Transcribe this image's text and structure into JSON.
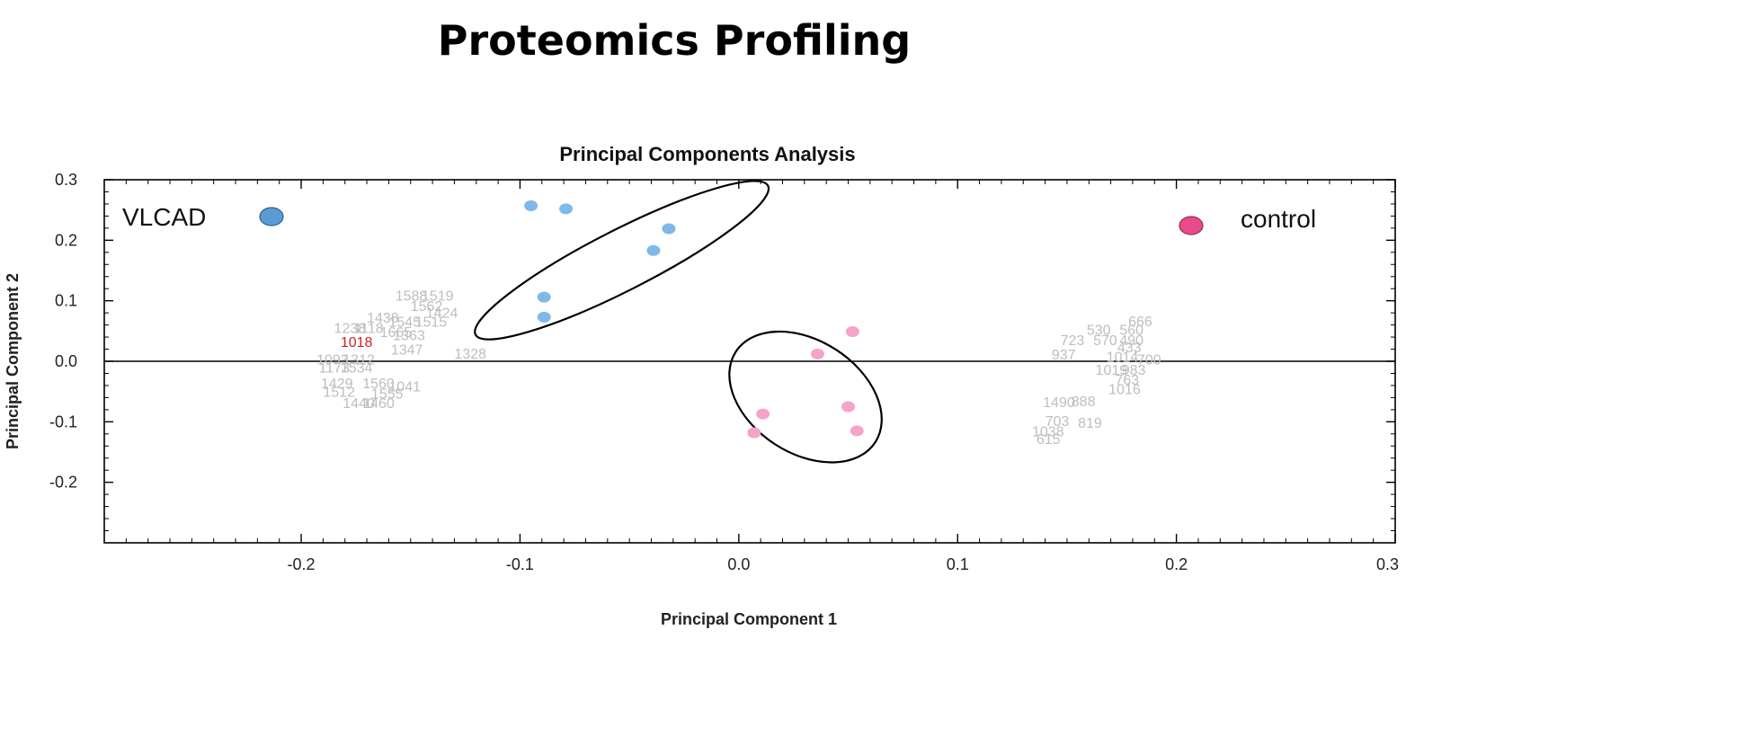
{
  "header": {
    "title": "Proteomics Profiling"
  },
  "chart_data": {
    "type": "scatter",
    "title": "Principal Components Analysis",
    "xlabel": "Principal Component 1",
    "ylabel": "Principal Component 2",
    "xlim": [
      -0.29,
      0.3
    ],
    "ylim": [
      -0.3,
      0.3
    ],
    "x_ticks": [
      -0.2,
      -0.1,
      0.0,
      0.1,
      0.2,
      0.3
    ],
    "y_ticks": [
      -0.2,
      -0.1,
      0.0,
      0.1,
      0.2,
      0.3
    ],
    "x_tick_labels": [
      "-0.2",
      "-0.1",
      "0.0",
      "0.1",
      "0.2",
      "0.3"
    ],
    "y_tick_labels": [
      "-0.2",
      "-0.1",
      "0.0",
      "0.1",
      "0.2",
      "0.3"
    ],
    "zero_line": true,
    "grid": false,
    "series": [
      {
        "name": "VLCAD",
        "color": "#7fb8ea",
        "legend_color": "#5b9bd5",
        "points": [
          {
            "x": -0.095,
            "y": 0.257
          },
          {
            "x": -0.079,
            "y": 0.252
          },
          {
            "x": -0.032,
            "y": 0.219
          },
          {
            "x": -0.039,
            "y": 0.183
          },
          {
            "x": -0.089,
            "y": 0.106
          },
          {
            "x": -0.089,
            "y": 0.073
          }
        ],
        "ellipse": {
          "cx": -0.0535,
          "cy": 0.167,
          "rx": 0.075,
          "ry": 0.05,
          "rotation_deg": -27
        }
      },
      {
        "name": "control",
        "color": "#f5a3c8",
        "legend_color": "#e84a8a",
        "points": [
          {
            "x": 0.052,
            "y": 0.049
          },
          {
            "x": 0.036,
            "y": 0.012
          },
          {
            "x": 0.05,
            "y": -0.075
          },
          {
            "x": 0.054,
            "y": -0.115
          },
          {
            "x": 0.011,
            "y": -0.087
          },
          {
            "x": 0.007,
            "y": -0.118
          }
        ],
        "ellipse": {
          "cx": 0.0305,
          "cy": -0.059,
          "rx": 0.038,
          "ry": 0.093,
          "rotation_deg": 33
        }
      }
    ],
    "legend": [
      {
        "label": "VLCAD",
        "color": "#5b9bd5",
        "placement": "top-left"
      },
      {
        "label": "control",
        "color": "#e84a8a",
        "placement": "top-right"
      }
    ],
    "loadings": [
      {
        "label": "1018",
        "x": -0.182,
        "y": 0.033,
        "highlight": true
      },
      {
        "label": "1588",
        "x": -0.157,
        "y": 0.109
      },
      {
        "label": "1519",
        "x": -0.145,
        "y": 0.109
      },
      {
        "label": "1562",
        "x": -0.15,
        "y": 0.092
      },
      {
        "label": "1424",
        "x": -0.143,
        "y": 0.081
      },
      {
        "label": "1438",
        "x": -0.17,
        "y": 0.073
      },
      {
        "label": "1545",
        "x": -0.16,
        "y": 0.066
      },
      {
        "label": "1515",
        "x": -0.148,
        "y": 0.066
      },
      {
        "label": "1238",
        "x": -0.185,
        "y": 0.056
      },
      {
        "label": "1118",
        "x": -0.176,
        "y": 0.056
      },
      {
        "label": "1665",
        "x": -0.164,
        "y": 0.049
      },
      {
        "label": "1363",
        "x": -0.158,
        "y": 0.044
      },
      {
        "label": "1347",
        "x": -0.159,
        "y": 0.02
      },
      {
        "label": "1328",
        "x": -0.13,
        "y": 0.013
      },
      {
        "label": "1093",
        "x": -0.193,
        "y": 0.004
      },
      {
        "label": "1312",
        "x": -0.181,
        "y": 0.004
      },
      {
        "label": "1173",
        "x": -0.192,
        "y": -0.01
      },
      {
        "label": "1534",
        "x": -0.182,
        "y": -0.01
      },
      {
        "label": "1429",
        "x": -0.191,
        "y": -0.036
      },
      {
        "label": "1560",
        "x": -0.172,
        "y": -0.036
      },
      {
        "label": "1041",
        "x": -0.16,
        "y": -0.041
      },
      {
        "label": "1512",
        "x": -0.19,
        "y": -0.05
      },
      {
        "label": "1555",
        "x": -0.168,
        "y": -0.053
      },
      {
        "label": "1440",
        "x": -0.181,
        "y": -0.068
      },
      {
        "label": "1460",
        "x": -0.172,
        "y": -0.068
      },
      {
        "label": "666",
        "x": 0.178,
        "y": 0.067
      },
      {
        "label": "530",
        "x": 0.159,
        "y": 0.053
      },
      {
        "label": "560",
        "x": 0.174,
        "y": 0.053
      },
      {
        "label": "723",
        "x": 0.147,
        "y": 0.036
      },
      {
        "label": "570",
        "x": 0.162,
        "y": 0.036
      },
      {
        "label": "490",
        "x": 0.174,
        "y": 0.036
      },
      {
        "label": "433",
        "x": 0.173,
        "y": 0.024
      },
      {
        "label": "937",
        "x": 0.143,
        "y": 0.012
      },
      {
        "label": "1014",
        "x": 0.168,
        "y": 0.008
      },
      {
        "label": "700",
        "x": 0.182,
        "y": 0.004
      },
      {
        "label": "1019",
        "x": 0.163,
        "y": -0.013
      },
      {
        "label": "983",
        "x": 0.175,
        "y": -0.013
      },
      {
        "label": "763",
        "x": 0.172,
        "y": -0.03
      },
      {
        "label": "1016",
        "x": 0.169,
        "y": -0.045
      },
      {
        "label": "1490",
        "x": 0.139,
        "y": -0.067
      },
      {
        "label": "888",
        "x": 0.152,
        "y": -0.065
      },
      {
        "label": "703",
        "x": 0.14,
        "y": -0.098
      },
      {
        "label": "819",
        "x": 0.155,
        "y": -0.101
      },
      {
        "label": "1038",
        "x": 0.134,
        "y": -0.115
      },
      {
        "label": "615",
        "x": 0.136,
        "y": -0.128
      }
    ]
  }
}
